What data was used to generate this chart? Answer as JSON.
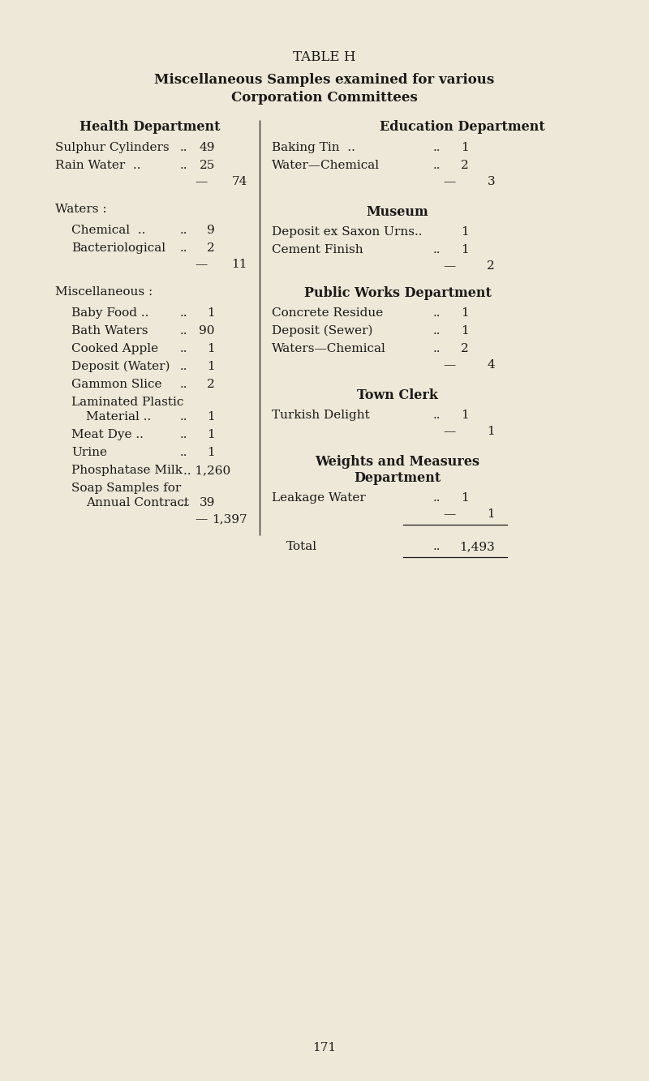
{
  "bg_color": "#ede8d8",
  "text_color": "#1c1a18",
  "title1": "TABLE H",
  "title2": "Miscellaneous Samples examined for various",
  "title3": "Corporation Committees",
  "page_number": "171"
}
